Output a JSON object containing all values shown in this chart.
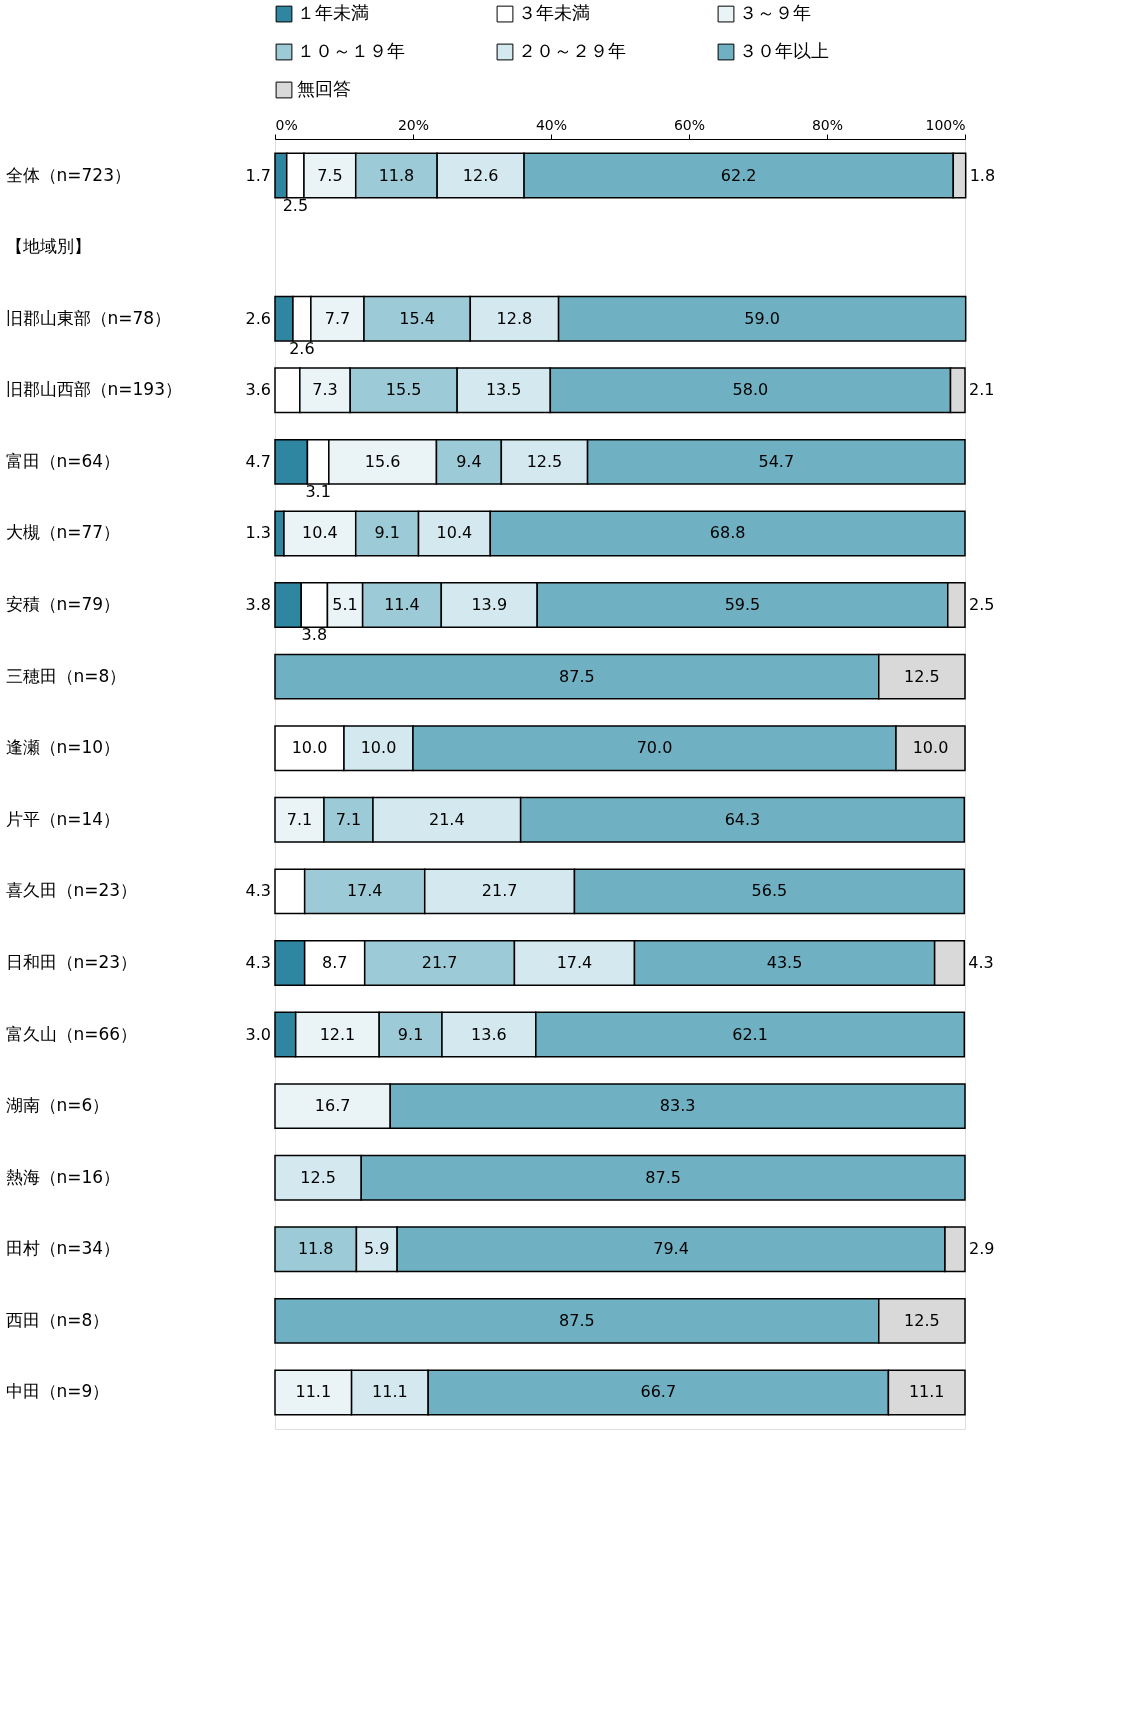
{
  "chart_data": {
    "type": "bar",
    "orientation": "horizontal",
    "stacked": true,
    "legend": "top",
    "grid": false,
    "categories": [
      "全体（n=723）",
      "【地域別】",
      "旧郡山東部（n=78）",
      "旧郡山西部（n=193）",
      "富田（n=64）",
      "大槻（n=77）",
      "安積（n=79）",
      "三穂田（n=8）",
      "逢瀬（n=10）",
      "片平（n=14）",
      "喜久田（n=23）",
      "日和田（n=23）",
      "富久山（n=66）",
      "湖南（n=6）",
      "熱海（n=16）",
      "田村（n=34）",
      "西田（n=8）",
      "中田（n=9）"
    ],
    "xlim": [
      0,
      100
    ],
    "xticks": [
      {
        "value": 0,
        "label": "0%"
      },
      {
        "value": 20,
        "label": "20%"
      },
      {
        "value": 40,
        "label": "40%"
      },
      {
        "value": 60,
        "label": "60%"
      },
      {
        "value": 80,
        "label": "80%"
      },
      {
        "value": 100,
        "label": "100%"
      }
    ],
    "series": [
      {
        "name": "１年未満",
        "color": "#2e86a0",
        "values": [
          1.7,
          null,
          2.6,
          null,
          4.7,
          1.3,
          3.8,
          null,
          null,
          null,
          null,
          4.3,
          3.0,
          null,
          null,
          null,
          null,
          null
        ],
        "value_labels": [
          "1.7",
          null,
          "2.6",
          null,
          "4.7",
          "1.3",
          "3.8",
          null,
          null,
          null,
          null,
          "4.3",
          "3.0",
          null,
          null,
          null,
          null,
          null
        ]
      },
      {
        "name": "３年未満",
        "color": "#ffffff",
        "values": [
          2.5,
          null,
          2.6,
          3.6,
          3.1,
          null,
          3.8,
          null,
          10.0,
          null,
          4.3,
          8.7,
          null,
          null,
          null,
          null,
          null,
          null
        ],
        "value_labels": [
          "2.5",
          null,
          "2.6",
          "3.6",
          "3.1",
          null,
          "3.8",
          null,
          "10.0",
          null,
          "4.3",
          "8.7",
          null,
          null,
          null,
          null,
          null,
          null
        ]
      },
      {
        "name": "３～９年",
        "color": "#eaf4f7",
        "values": [
          7.5,
          null,
          7.7,
          7.3,
          15.6,
          10.4,
          5.1,
          null,
          null,
          7.1,
          null,
          null,
          12.1,
          16.7,
          null,
          null,
          null,
          11.1
        ],
        "value_labels": [
          "7.5",
          null,
          "7.7",
          "7.3",
          "15.6",
          "10.4",
          "5.1",
          null,
          null,
          "7.1",
          null,
          null,
          "12.1",
          "16.7",
          null,
          null,
          null,
          "11.1"
        ]
      },
      {
        "name": "１０～１９年",
        "color": "#9ccbd7",
        "values": [
          11.8,
          null,
          15.4,
          15.5,
          9.4,
          9.1,
          11.4,
          null,
          null,
          7.1,
          17.4,
          21.7,
          9.1,
          null,
          null,
          11.8,
          null,
          null
        ],
        "value_labels": [
          "11.8",
          null,
          "15.4",
          "15.5",
          "9.4",
          "9.1",
          "11.4",
          null,
          null,
          "7.1",
          "17.4",
          "21.7",
          "9.1",
          null,
          null,
          "11.8",
          null,
          null
        ]
      },
      {
        "name": "２０～２９年",
        "color": "#d3e9ef",
        "values": [
          12.6,
          null,
          12.8,
          13.5,
          12.5,
          10.4,
          13.9,
          null,
          10.0,
          21.4,
          21.7,
          17.4,
          13.6,
          null,
          12.5,
          5.9,
          null,
          11.1
        ],
        "value_labels": [
          "12.6",
          null,
          "12.8",
          "13.5",
          "12.5",
          "10.4",
          "13.9",
          null,
          "10.0",
          "21.4",
          "21.7",
          "17.4",
          "13.6",
          null,
          "12.5",
          "5.9",
          null,
          "11.1"
        ]
      },
      {
        "name": "３０年以上",
        "color": "#6fb0c2",
        "values": [
          62.2,
          null,
          59.0,
          58.0,
          54.7,
          68.8,
          59.5,
          87.5,
          70.0,
          64.3,
          56.5,
          43.5,
          62.1,
          83.3,
          87.5,
          79.4,
          87.5,
          66.7
        ],
        "value_labels": [
          "62.2",
          null,
          "59.0",
          "58.0",
          "54.7",
          "68.8",
          "59.5",
          "87.5",
          "70.0",
          "64.3",
          "56.5",
          "43.5",
          "62.1",
          "83.3",
          "87.5",
          "79.4",
          "87.5",
          "66.7"
        ]
      },
      {
        "name": "無回答",
        "color": "#d9d9d9",
        "values": [
          1.8,
          null,
          null,
          2.1,
          null,
          null,
          2.5,
          12.5,
          10.0,
          null,
          null,
          4.3,
          null,
          null,
          null,
          2.9,
          12.5,
          11.1
        ],
        "value_labels": [
          "1.8",
          null,
          null,
          "2.1",
          null,
          null,
          "2.5",
          "12.5",
          "10.0",
          null,
          null,
          "4.3",
          null,
          null,
          null,
          "2.9",
          "12.5",
          "11.1"
        ]
      }
    ]
  }
}
